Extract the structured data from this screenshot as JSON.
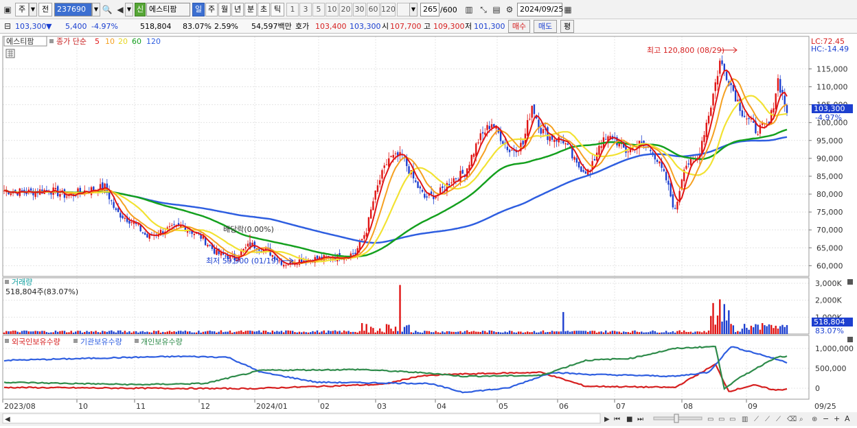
{
  "toolbar": {
    "market_label": "주",
    "prev_label": "전",
    "code": "237690",
    "new_badge": "신",
    "stock_name": "에스티팜",
    "periods": [
      "일",
      "주",
      "월",
      "년",
      "분",
      "초",
      "틱"
    ],
    "selected_period": "일",
    "intervals": [
      "1",
      "3",
      "5",
      "10",
      "20",
      "30",
      "60",
      "120"
    ],
    "count": "265",
    "count_max": "/600",
    "date": "2024/09/25"
  },
  "quote": {
    "price": "103,300",
    "change": "5,400",
    "change_pct": "-4.97%",
    "volume": "518,804",
    "volume_ratio": "83.07%",
    "turnover_rate": "2.59%",
    "amount": "54,597백만",
    "ask_label": "호가",
    "ask_value": "103,400",
    "bid_value": "103,300",
    "open_label": "시",
    "open_value": "107,700",
    "high_label": "고",
    "high_value": "109,300",
    "low_label": "저",
    "low_value": "101,300",
    "buy_button": "매수",
    "sell_button": "매도",
    "eval_button": "평"
  },
  "price_panel": {
    "name_tag": "에스티팜",
    "legend_prefix": "종가 단순",
    "ma": [
      {
        "period": "5",
        "color": "#e01414"
      },
      {
        "period": "10",
        "color": "#f5a020"
      },
      {
        "period": "20",
        "color": "#f2e232"
      },
      {
        "period": "60",
        "color": "#14a01e"
      },
      {
        "period": "120",
        "color": "#2e5ee0"
      }
    ],
    "lc": "LC:72.45",
    "hc": "HC:-14.49",
    "y_ticks": [
      "115,000",
      "110,000",
      "105,000",
      "100,000",
      "95,000",
      "90,000",
      "85,000",
      "80,000",
      "75,000",
      "70,000",
      "65,000",
      "60,000"
    ],
    "current_label": "103,300",
    "current_pct": "-4.97%",
    "high_annotation": "최고 120,800 (08/29)",
    "low_annotation": "최저 59,900 (01/19)",
    "dividend_annotation": "배당락(0.00%)"
  },
  "volume_panel": {
    "title": "거래량",
    "value_line": "518,804주(83.07%)",
    "y_ticks": [
      "3,000K",
      "2,000K",
      "1,000K"
    ],
    "current_label": "518,804",
    "current_pct": "83.07%"
  },
  "holding_panel": {
    "legends": [
      {
        "label": "외국인보유수량",
        "color": "#d61f1f"
      },
      {
        "label": "기관보유수량",
        "color": "#2e5ee0"
      },
      {
        "label": "개인보유수량",
        "color": "#2e8b4a"
      }
    ],
    "y_ticks": [
      "1,000,000",
      "500,000",
      "0"
    ]
  },
  "x_axis": {
    "labels": [
      "2023/08",
      "10",
      "11",
      "12",
      "2024/01",
      "02",
      "03",
      "04",
      "05",
      "06",
      "07",
      "08",
      "09"
    ],
    "right_label": "09/25"
  },
  "colors": {
    "up": "#e01414",
    "down": "#1d3fcf",
    "price_tag": "#1d3fcf"
  }
}
